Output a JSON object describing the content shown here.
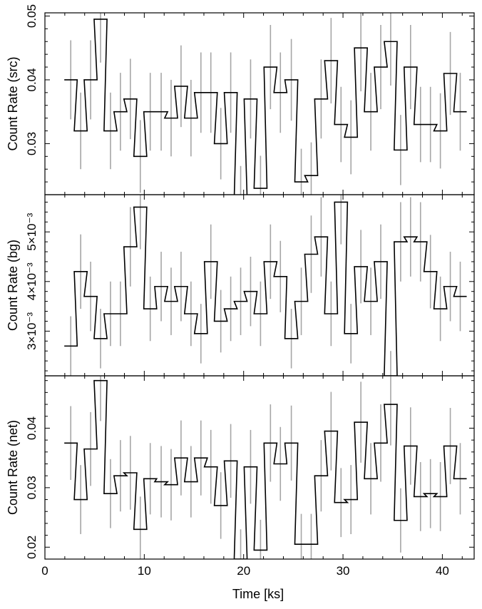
{
  "chart_data": {
    "type": "line",
    "style": "step histogram with vertical error bars, three vertically stacked panels sharing the time axis",
    "xlabel": "Time [ks]",
    "xlim": [
      0,
      43.2
    ],
    "x_ticks": [
      0,
      10,
      20,
      30,
      40
    ],
    "x_tick_labels": [
      "0",
      "10",
      "20",
      "30",
      "40"
    ],
    "bin_width_ks": 1.3,
    "bin_centers_ks": [
      2.6,
      3.6,
      4.6,
      5.6,
      6.6,
      7.6,
      8.6,
      9.6,
      10.6,
      11.7,
      12.7,
      13.7,
      14.7,
      15.7,
      16.7,
      17.7,
      18.7,
      19.7,
      20.7,
      21.7,
      22.7,
      23.7,
      24.8,
      25.8,
      26.8,
      27.8,
      28.8,
      29.8,
      30.8,
      31.8,
      32.8,
      33.8,
      34.8,
      35.8,
      36.8,
      37.8,
      38.8,
      39.8,
      40.8,
      41.8
    ],
    "error_bar_color": "#a6a6a6",
    "line_color": "#000000",
    "panels": [
      {
        "ylabel": "Count Rate (src)",
        "ylim": [
          0.022,
          0.0505
        ],
        "y_ticks": [
          0.03,
          0.04,
          0.05
        ],
        "y_tick_labels": [
          "0.03",
          "0.04",
          "0.05"
        ],
        "values": [
          0.04,
          0.032,
          0.04,
          0.0495,
          0.032,
          0.035,
          0.037,
          0.028,
          0.035,
          0.035,
          0.034,
          0.039,
          0.034,
          0.038,
          0.038,
          0.03,
          0.038,
          0.0215,
          0.037,
          0.023,
          0.042,
          0.038,
          0.04,
          0.024,
          0.025,
          0.037,
          0.043,
          0.033,
          0.031,
          0.045,
          0.035,
          0.042,
          0.046,
          0.029,
          0.042,
          0.033,
          0.033,
          0.032,
          0.041,
          0.035
        ],
        "errors": [
          0.0062,
          0.006,
          0.0062,
          0.0068,
          0.006,
          0.0061,
          0.0063,
          0.0057,
          0.0061,
          0.0061,
          0.006,
          0.0064,
          0.006,
          0.0063,
          0.0063,
          0.0056,
          0.0063,
          0.005,
          0.0062,
          0.0051,
          0.0066,
          0.0063,
          0.0064,
          0.0052,
          0.0052,
          0.0062,
          0.0067,
          0.0059,
          0.0058,
          0.0068,
          0.0061,
          0.0066,
          0.0069,
          0.0055,
          0.0066,
          0.0059,
          0.0059,
          0.0059,
          0.0065,
          0.0061
        ]
      },
      {
        "ylabel": "Count Rate (bg)",
        "ylim": [
          0.0021,
          0.00575
        ],
        "y_ticks": [
          0.003,
          0.004,
          0.005
        ],
        "y_tick_labels": [
          "3×10⁻³",
          "4×10⁻³",
          "5×10⁻³"
        ],
        "values": [
          0.0027,
          0.0042,
          0.0037,
          0.00285,
          0.00335,
          0.00335,
          0.0047,
          0.0055,
          0.00345,
          0.0039,
          0.0036,
          0.0039,
          0.00335,
          0.00295,
          0.0044,
          0.0032,
          0.00345,
          0.0036,
          0.0038,
          0.00335,
          0.0044,
          0.0041,
          0.00285,
          0.0036,
          0.00455,
          0.0049,
          0.00335,
          0.0056,
          0.00295,
          0.0043,
          0.0036,
          0.0044,
          0.0021,
          0.0048,
          0.0049,
          0.0048,
          0.0042,
          0.00345,
          0.0039,
          0.0037
        ],
        "errors": [
          0.0006,
          0.00075,
          0.0007,
          0.0006,
          0.00065,
          0.00065,
          0.0008,
          0.00085,
          0.00065,
          0.0007,
          0.00068,
          0.0007,
          0.00065,
          0.0006,
          0.00075,
          0.00063,
          0.00065,
          0.00068,
          0.0007,
          0.00065,
          0.00075,
          0.00072,
          0.0006,
          0.00068,
          0.00078,
          0.0008,
          0.00065,
          0.00085,
          0.0006,
          0.00074,
          0.00068,
          0.00075,
          0.0005,
          0.0008,
          0.0008,
          0.0008,
          0.00074,
          0.00065,
          0.0007,
          0.0007
        ]
      },
      {
        "ylabel": "Count Rate (net)",
        "ylim": [
          0.018,
          0.0488
        ],
        "y_ticks": [
          0.02,
          0.03,
          0.04
        ],
        "y_tick_labels": [
          "0.02",
          "0.03",
          "0.04"
        ],
        "values": [
          0.0375,
          0.028,
          0.0365,
          0.048,
          0.029,
          0.032,
          0.0325,
          0.023,
          0.0315,
          0.031,
          0.0305,
          0.035,
          0.031,
          0.035,
          0.0335,
          0.027,
          0.0345,
          0.018,
          0.0335,
          0.0195,
          0.0375,
          0.034,
          0.0375,
          0.0205,
          0.0205,
          0.032,
          0.0395,
          0.0275,
          0.028,
          0.041,
          0.0315,
          0.0375,
          0.044,
          0.0245,
          0.037,
          0.0285,
          0.029,
          0.0285,
          0.037,
          0.0315
        ],
        "errors": [
          0.0062,
          0.0058,
          0.0062,
          0.0068,
          0.0058,
          0.006,
          0.0062,
          0.0055,
          0.006,
          0.006,
          0.006,
          0.0063,
          0.006,
          0.0063,
          0.0062,
          0.0056,
          0.0062,
          0.005,
          0.0062,
          0.0051,
          0.0065,
          0.0062,
          0.0063,
          0.0051,
          0.0051,
          0.006,
          0.0066,
          0.0058,
          0.0058,
          0.0068,
          0.006,
          0.0065,
          0.0069,
          0.0054,
          0.0065,
          0.0058,
          0.0058,
          0.0058,
          0.0064,
          0.006
        ]
      }
    ]
  }
}
